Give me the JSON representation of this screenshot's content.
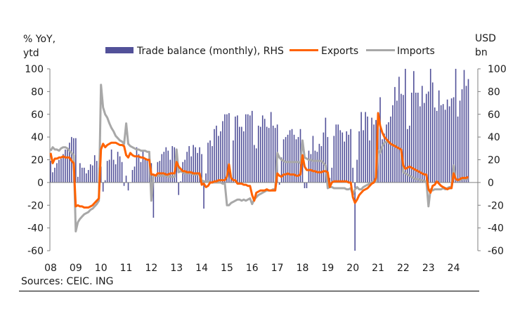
{
  "chart_data": {
    "type": "bar+line",
    "title": "",
    "left_axis_label": [
      "% YoY,",
      "ytd"
    ],
    "right_axis_label": [
      "USD",
      "bn"
    ],
    "ylim_left": [
      -60,
      100
    ],
    "ylim_right": [
      -60,
      100
    ],
    "yticks": [
      100,
      80,
      60,
      40,
      20,
      0,
      -20,
      -40,
      -60
    ],
    "x_tick_labels": [
      "08",
      "09",
      "10",
      "11",
      "12",
      "13",
      "14",
      "15",
      "16",
      "17",
      "18",
      "19",
      "20",
      "21",
      "22",
      "23",
      "24"
    ],
    "x_start": "2008-01",
    "frequency": "monthly",
    "legend": {
      "placement": "top",
      "items": [
        {
          "label": "Trade balance (monthly), RHS",
          "type": "bar",
          "color": "#525199"
        },
        {
          "label": "Exports",
          "type": "line",
          "color": "#FF6200"
        },
        {
          "label": "Imports",
          "type": "line",
          "color": "#A8A8A8"
        }
      ]
    },
    "series": [
      {
        "name": "Trade balance (monthly), RHS",
        "axis": "right",
        "type": "bar",
        "color": "#525199",
        "values": [
          19,
          9,
          13,
          17,
          20,
          21,
          25,
          29,
          29,
          35,
          40,
          39,
          39,
          5,
          17,
          13,
          13,
          8,
          11,
          16,
          15,
          24,
          19,
          13,
          14,
          -8,
          2,
          19,
          20,
          29,
          20,
          16,
          27,
          23,
          18,
          -3,
          6,
          -7,
          0,
          11,
          14,
          31,
          25,
          18,
          28,
          20,
          20,
          17,
          17,
          -31,
          5,
          18,
          19,
          25,
          27,
          31,
          28,
          20,
          32,
          31,
          29,
          -11,
          1,
          18,
          20,
          27,
          32,
          23,
          33,
          31,
          26,
          31,
          25,
          -23,
          8,
          35,
          37,
          32,
          47,
          50,
          41,
          45,
          54,
          60,
          60,
          61,
          3,
          37,
          58,
          59,
          49,
          49,
          45,
          60,
          60,
          59,
          63,
          33,
          30,
          50,
          49,
          59,
          56,
          49,
          48,
          62,
          50,
          48,
          51,
          -2,
          22,
          38,
          40,
          42,
          46,
          47,
          42,
          38,
          40,
          47,
          19,
          -5,
          -5,
          28,
          25,
          41,
          28,
          27,
          34,
          32,
          44,
          57,
          40,
          4,
          13,
          41,
          51,
          51,
          46,
          44,
          36,
          45,
          42,
          47,
          13,
          -60,
          20,
          45,
          62,
          46,
          62,
          58,
          37,
          57,
          51,
          55,
          62,
          75,
          38,
          43,
          51,
          53,
          58,
          68,
          84,
          72,
          93,
          78,
          77,
          116,
          47,
          50,
          79,
          98,
          79,
          79,
          67,
          85,
          70,
          78,
          80,
          117,
          88,
          66,
          63,
          81,
          68,
          69,
          64,
          73,
          67,
          74,
          75,
          125,
          58,
          72,
          82,
          99,
          85,
          91
        ]
      },
      {
        "name": "Exports",
        "axis": "left",
        "type": "line",
        "color": "#FF6200",
        "values": [
          26,
          17,
          21,
          21,
          22,
          22,
          23,
          22,
          22,
          22,
          19,
          17,
          -21,
          -20,
          -21,
          -21,
          -22,
          -22,
          -22,
          -21,
          -20,
          -18,
          -16,
          -14,
          29,
          34,
          31,
          33,
          34,
          35,
          35,
          35,
          34,
          33,
          33,
          32,
          24,
          22,
          26,
          24,
          23,
          23,
          23,
          22,
          22,
          21,
          20,
          20,
          7,
          7,
          6,
          8,
          8,
          8,
          8,
          7,
          7,
          8,
          8,
          8,
          18,
          14,
          12,
          10,
          10,
          9,
          9,
          9,
          8,
          8,
          8,
          8,
          -2,
          -1,
          -4,
          -3,
          0,
          0,
          1,
          1,
          2,
          2,
          2,
          2,
          5,
          16,
          4,
          2,
          2,
          -1,
          -1,
          -1,
          -2,
          -2,
          -3,
          -3,
          -11,
          -16,
          -9,
          -8,
          -7,
          -7,
          -7,
          -6,
          -7,
          -7,
          -7,
          -7,
          8,
          6,
          5,
          7,
          7,
          8,
          7,
          7,
          7,
          6,
          6,
          7,
          24,
          14,
          11,
          11,
          11,
          10,
          10,
          9,
          9,
          9,
          10,
          10,
          9,
          -4,
          0,
          1,
          1,
          1,
          1,
          1,
          1,
          1,
          0,
          0,
          -13,
          -18,
          -15,
          -11,
          -9,
          -7,
          -6,
          -5,
          -3,
          -1,
          0,
          4,
          61,
          50,
          44,
          40,
          38,
          36,
          34,
          33,
          32,
          31,
          30,
          29,
          15,
          12,
          13,
          14,
          13,
          12,
          11,
          10,
          9,
          8,
          7,
          7,
          -6,
          -9,
          -3,
          -2,
          1,
          -1,
          -3,
          -4,
          -5,
          -6,
          -5,
          -5,
          8,
          3,
          2,
          3,
          4,
          4,
          4,
          5
        ]
      },
      {
        "name": "Imports",
        "axis": "left",
        "type": "line",
        "color": "#A8A8A8",
        "values": [
          28,
          31,
          29,
          29,
          28,
          30,
          31,
          31,
          30,
          28,
          26,
          24,
          -43,
          -35,
          -32,
          -30,
          -28,
          -27,
          -26,
          -24,
          -23,
          -21,
          -19,
          -16,
          86,
          66,
          60,
          57,
          52,
          48,
          45,
          41,
          39,
          37,
          36,
          34,
          52,
          34,
          32,
          31,
          30,
          29,
          29,
          28,
          28,
          28,
          27,
          27,
          -16,
          7,
          6,
          6,
          6,
          6,
          6,
          6,
          5,
          5,
          5,
          5,
          29,
          9,
          10,
          9,
          8,
          8,
          8,
          8,
          7,
          7,
          7,
          7,
          2,
          1,
          1,
          1,
          0,
          0,
          0,
          0,
          0,
          0,
          -1,
          -1,
          -20,
          -20,
          -18,
          -17,
          -16,
          -15,
          -15,
          -16,
          -15,
          -16,
          -15,
          -14,
          -19,
          -15,
          -13,
          -11,
          -10,
          -9,
          -8,
          -7,
          -7,
          -7,
          -6,
          -6,
          26,
          22,
          20,
          19,
          18,
          18,
          18,
          18,
          18,
          18,
          18,
          17,
          37,
          22,
          21,
          20,
          20,
          19,
          19,
          19,
          19,
          19,
          17,
          15,
          -5,
          -4,
          -4,
          -5,
          -5,
          -5,
          -5,
          -5,
          -5,
          -6,
          -6,
          -5,
          -11,
          -6,
          -4,
          -6,
          -6,
          -4,
          -3,
          -2,
          -1,
          0,
          1,
          1,
          28,
          26,
          32,
          35,
          36,
          35,
          34,
          33,
          33,
          31,
          30,
          29,
          9,
          8,
          7,
          6,
          5,
          4,
          3,
          3,
          2,
          2,
          1,
          1,
          -21,
          -6,
          -7,
          -6,
          -6,
          -6,
          -6,
          -5,
          -6,
          -5,
          -4,
          -4,
          15,
          3,
          2,
          2,
          3,
          3,
          3,
          3
        ]
      }
    ]
  },
  "footer": {
    "source": "Sources: CEIC. ING"
  }
}
